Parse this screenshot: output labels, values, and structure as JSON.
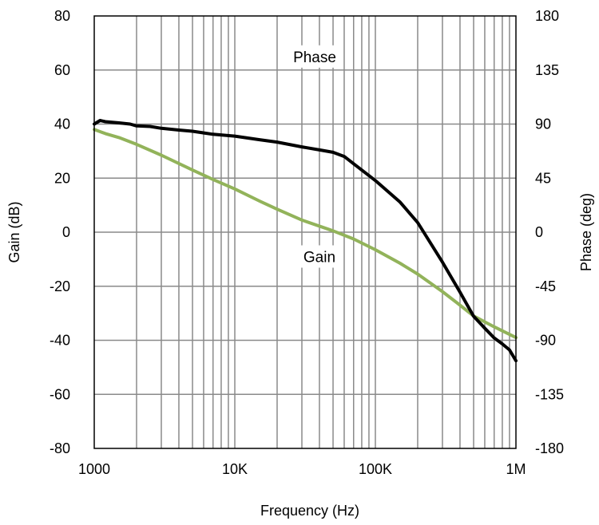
{
  "chart_data": {
    "type": "line",
    "title": "",
    "xlabel": "Frequency (Hz)",
    "ylabel": "Gain (dB)",
    "y2label": "Phase (deg)",
    "x_scale": "log",
    "xlim": [
      1000,
      1000000
    ],
    "ylim": [
      -80,
      80
    ],
    "y2lim": [
      -180,
      180
    ],
    "grid": true,
    "legend": "none",
    "x_ticks": [
      {
        "value": 1000,
        "label": "1000"
      },
      {
        "value": 10000,
        "label": "10K"
      },
      {
        "value": 100000,
        "label": "100K"
      },
      {
        "value": 1000000,
        "label": "1M"
      }
    ],
    "y_ticks": [
      "80",
      "60",
      "40",
      "20",
      "0",
      "-20",
      "-40",
      "-60",
      "-80"
    ],
    "y_tick_values": [
      80,
      60,
      40,
      20,
      0,
      -20,
      -40,
      -60,
      -80
    ],
    "y2_ticks": [
      "180",
      "135",
      "90",
      "45",
      "0",
      "-45",
      "-90",
      "-135",
      "-180"
    ],
    "y2_tick_values": [
      180,
      135,
      90,
      45,
      0,
      -45,
      -90,
      -135,
      -180
    ],
    "series": [
      {
        "name": "Gain",
        "axis": "left",
        "color": "#92b35a",
        "x": [
          1000,
          1200,
          1500,
          2000,
          3000,
          5000,
          7000,
          10000,
          15000,
          20000,
          30000,
          50000,
          70000,
          100000,
          150000,
          200000,
          300000,
          400000,
          500000,
          700000,
          1000000
        ],
        "y": [
          38,
          36.5,
          35,
          32.5,
          28.5,
          23,
          19.5,
          16,
          11.5,
          8.5,
          4.5,
          0.5,
          -2.5,
          -6.5,
          -11.5,
          -15.5,
          -22,
          -27,
          -31,
          -35,
          -39
        ]
      },
      {
        "name": "Phase",
        "axis": "right",
        "color": "#000000",
        "x": [
          1000,
          1100,
          1200,
          1500,
          1800,
          2000,
          2500,
          3000,
          4000,
          5000,
          7000,
          10000,
          15000,
          20000,
          30000,
          40000,
          50000,
          60000,
          70000,
          100000,
          150000,
          200000,
          300000,
          400000,
          500000,
          600000,
          700000,
          800000,
          900000,
          1000000
        ],
        "y": [
          90,
          93,
          92,
          91,
          90,
          88.5,
          88,
          86.5,
          85,
          84,
          81.5,
          80,
          77,
          75,
          71,
          68.5,
          66.5,
          63,
          57,
          43,
          25,
          8,
          -25,
          -50,
          -70,
          -80,
          -88,
          -93,
          -98,
          -107
        ]
      }
    ],
    "annotations": [
      {
        "text": "Phase",
        "x": 37000,
        "y": 65
      },
      {
        "text": "Gain",
        "x": 40000,
        "y": -9
      }
    ]
  }
}
